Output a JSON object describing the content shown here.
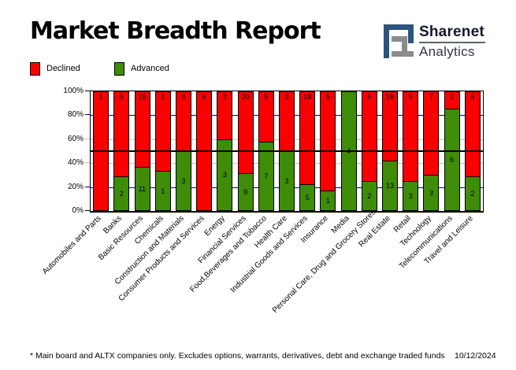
{
  "header": {
    "title": "Market Breadth Report",
    "logo": {
      "brand": "Sharenet",
      "sub": "Analytics",
      "mark_blue": "#2A547E",
      "mark_gray": "#8C8C8C"
    }
  },
  "legend": [
    {
      "label": "Declined",
      "color": "#FA0000"
    },
    {
      "label": "Advanced",
      "color": "#3E8C08"
    }
  ],
  "chart_data": {
    "type": "bar",
    "stacked": true,
    "unit": "percent of companies (count labels shown on segments)",
    "title": "Market Breadth Report",
    "categories": [
      "Automobiles and Parts",
      "Banks",
      "Basic Resources",
      "Chemicals",
      "Construction and Materials",
      "Consumer Products and Services",
      "Energy",
      "Financial Services",
      "Food,Beverages and Tobacco",
      "Health Care",
      "Industrial Goods and Services",
      "Insurance",
      "Media",
      "Personal Care, Drug and Grocery Stores",
      "Real Estate",
      "Retail",
      "Technology",
      "Telecommunications",
      "Travel and Leisure"
    ],
    "series": [
      {
        "name": "Declined",
        "color": "#FA0000",
        "values": [
          1,
          5,
          19,
          2,
          3,
          6,
          2,
          20,
          5,
          3,
          18,
          5,
          0,
          6,
          18,
          9,
          7,
          1,
          5
        ]
      },
      {
        "name": "Advanced",
        "color": "#3E8C08",
        "values": [
          0,
          2,
          11,
          1,
          3,
          0,
          3,
          9,
          7,
          3,
          5,
          1,
          4,
          2,
          13,
          3,
          3,
          6,
          2
        ]
      }
    ],
    "y_axis": {
      "range": [
        0,
        100
      ],
      "ticks": [
        {
          "label": "100%",
          "pct": 100,
          "color": "#000000"
        },
        {
          "label": "80%",
          "pct": 80,
          "color": "#000080"
        },
        {
          "label": "60%",
          "pct": 60,
          "color": "#C4C4C4"
        },
        {
          "label": "40%",
          "pct": 40,
          "color": "#C4C4C4"
        },
        {
          "label": "20%",
          "pct": 20,
          "color": "#000080"
        },
        {
          "label": "0%",
          "pct": 0,
          "color": "#000000"
        }
      ]
    },
    "reference_line": {
      "pct": 50,
      "color": "#000000"
    },
    "legend_position": "top-left",
    "grid": "horizontal lines at 20/40/60/80 behind bars, solid black line at 50 over bars"
  },
  "footer": {
    "note": "* Main board and ALTX companies only. Excludes options, warrants, derivatives, debt and exchange traded funds",
    "date": "10/12/2024"
  }
}
